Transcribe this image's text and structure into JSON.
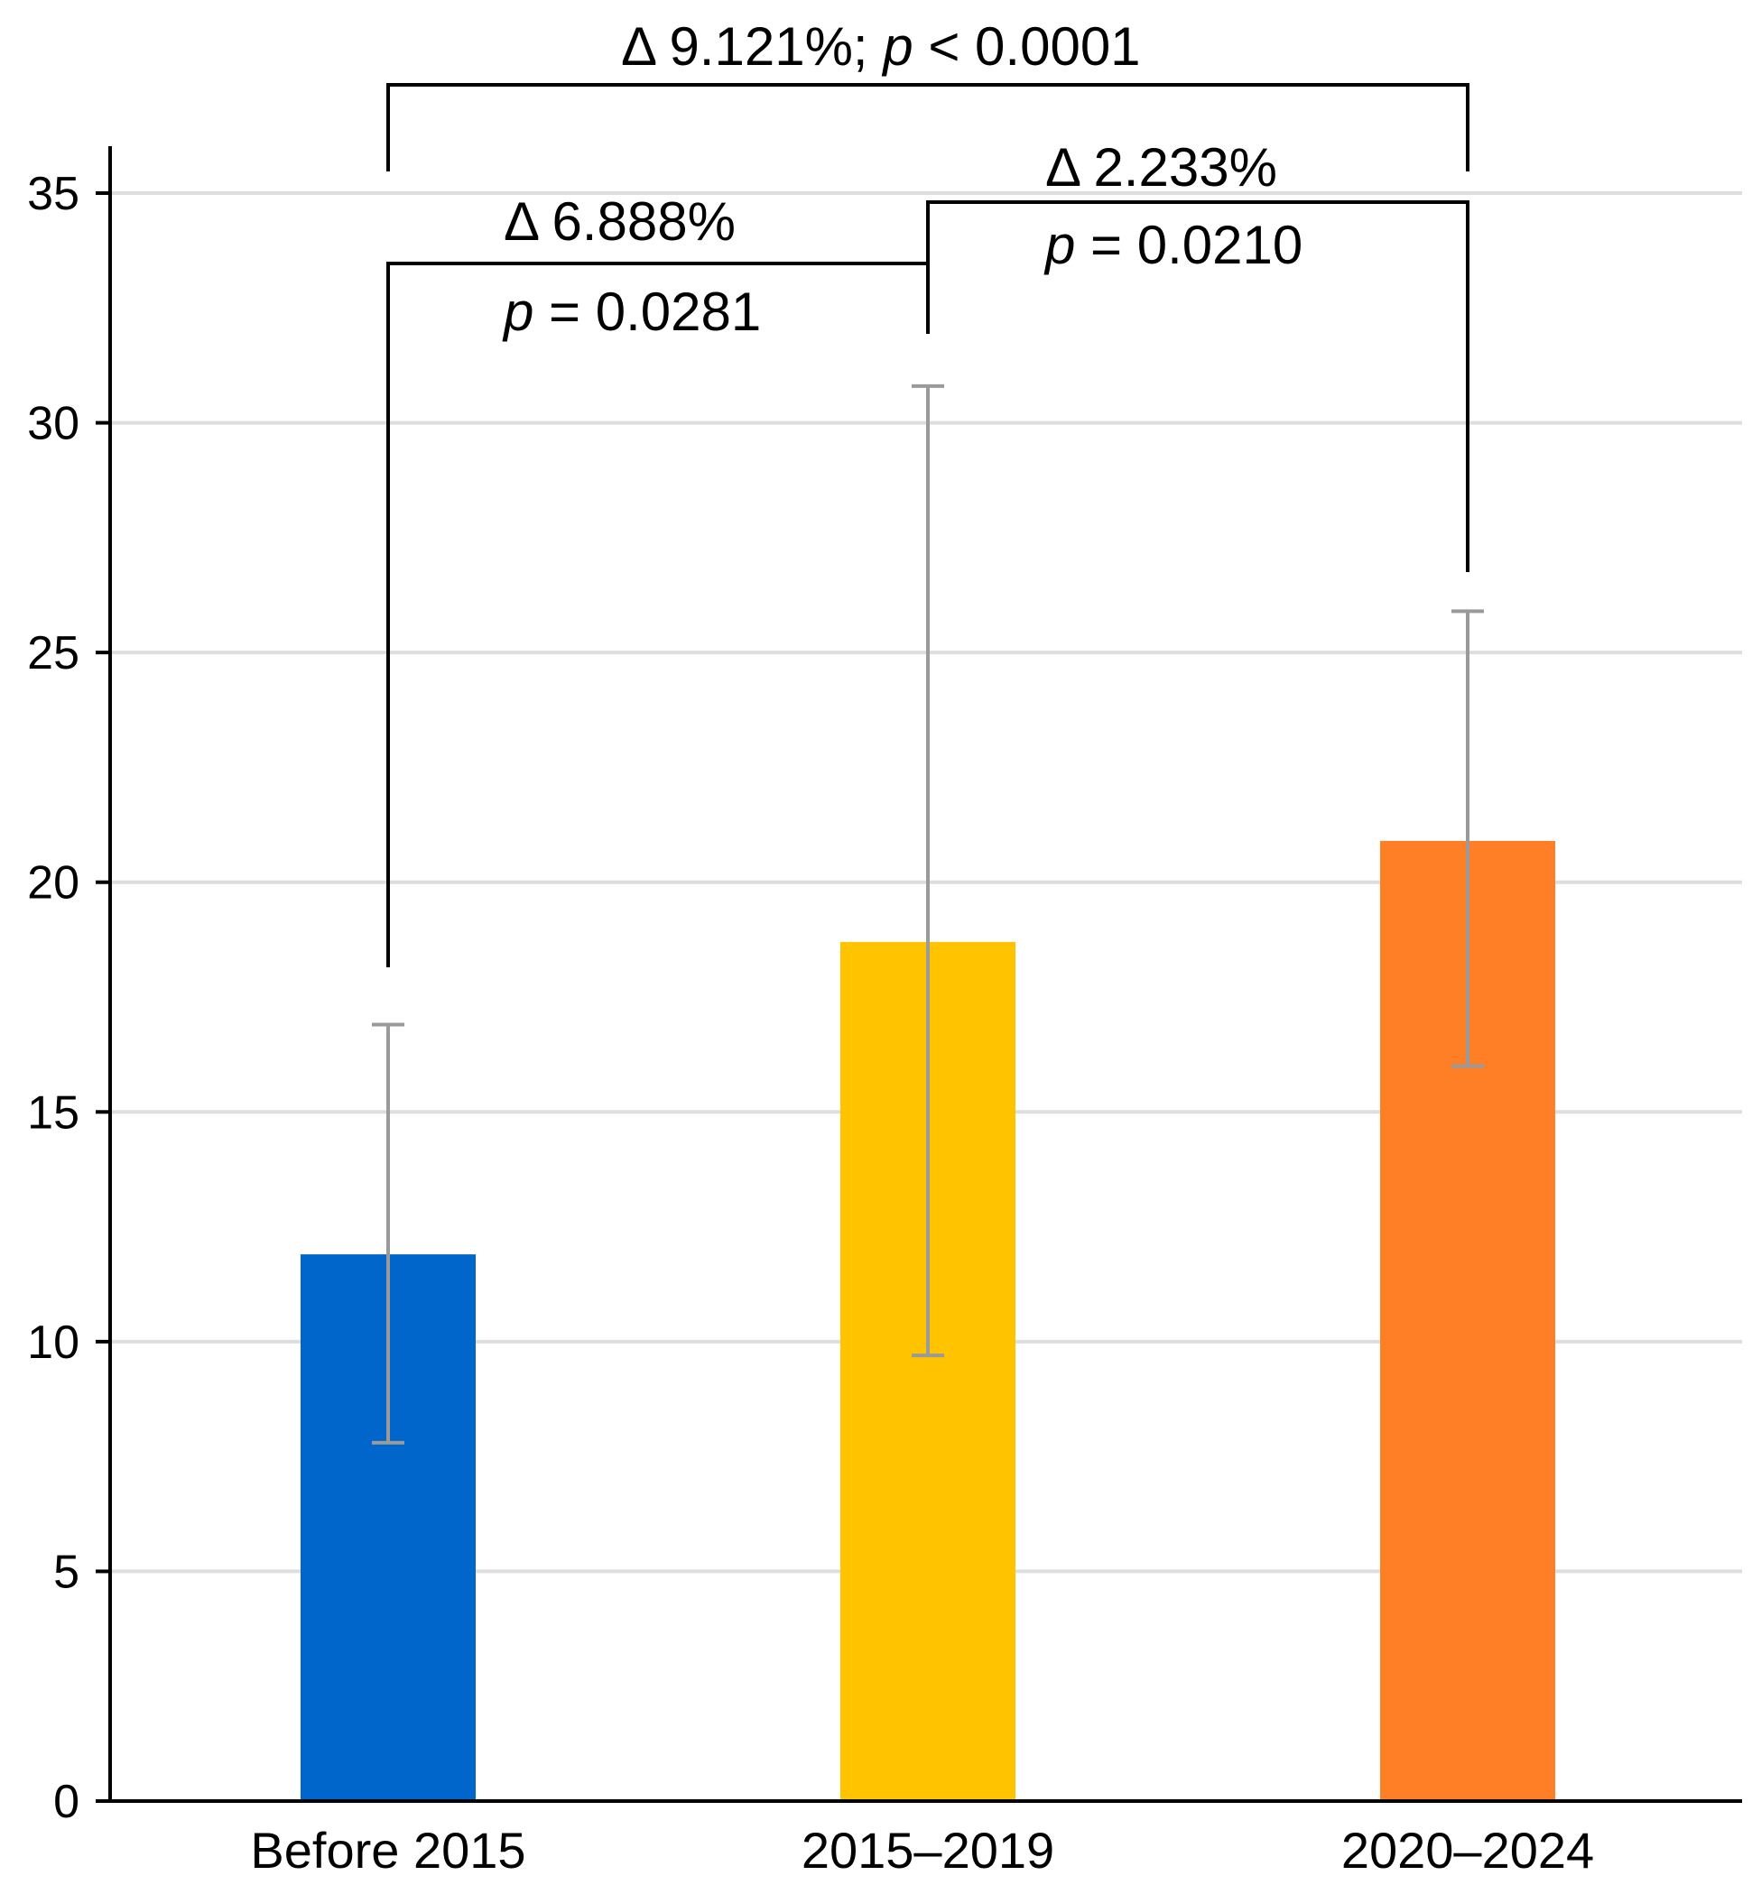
{
  "chart_data": {
    "type": "bar",
    "title": "",
    "xlabel": "",
    "ylabel": "",
    "ylim": [
      0,
      35
    ],
    "yticks": [
      0,
      5,
      10,
      15,
      20,
      25,
      30,
      35
    ],
    "grid": true,
    "categories": [
      "Before 2015",
      "2015–2019",
      "2020–2024"
    ],
    "values": [
      11.9,
      18.7,
      20.9
    ],
    "error_low": [
      7.8,
      9.7,
      16.0
    ],
    "error_high": [
      16.9,
      30.8,
      25.9
    ],
    "colors": [
      "#0066cc",
      "#ffc300",
      "#ff7f27"
    ],
    "error_bar_color": "#9a9a9a",
    "gridline_color": "#dedede",
    "annotations": [
      {
        "from": "Before 2015",
        "to": "2015–2019",
        "delta_text": "Δ 6.888%",
        "p_symbol": "p",
        "p_text": " = 0.0281"
      },
      {
        "from": "2015–2019",
        "to": "2020–2024",
        "delta_text": "Δ 2.233%",
        "p_symbol": "p",
        "p_text": " = 0.0210"
      },
      {
        "from": "Before 2015",
        "to": "2020–2024",
        "delta_text": "Δ 9.121%; ",
        "p_symbol": "p",
        "p_text": " < 0.0001"
      }
    ]
  }
}
